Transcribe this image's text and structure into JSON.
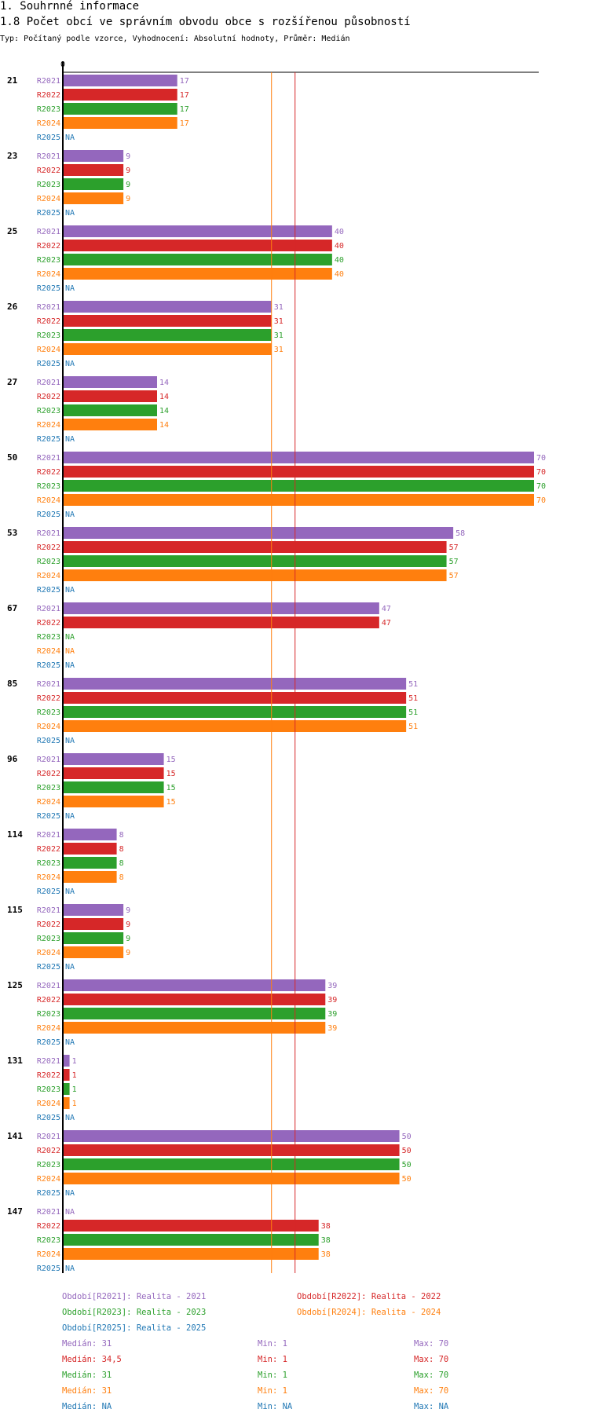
{
  "header": {
    "title": "1. Souhrnné informace",
    "subtitle": "1.8 Počet obcí ve správním obvodu obce s rozšířenou působností",
    "typ": "Typ: Počítaný podle vzorce, Vyhodnocení: Absolutní hodnoty, Průměr: Medián"
  },
  "colors": {
    "R2021": "#9467bd",
    "R2022": "#d62728",
    "R2023": "#2ca02c",
    "R2024": "#ff7f0e",
    "R2025": "#1f77b4"
  },
  "chart_data": {
    "type": "bar",
    "orientation": "horizontal",
    "xlim": [
      0,
      70
    ],
    "zero_label": "0",
    "na_label": "NA",
    "series_names": [
      "R2021",
      "R2022",
      "R2023",
      "R2024",
      "R2025"
    ],
    "categories": [
      "21",
      "23",
      "25",
      "26",
      "27",
      "50",
      "53",
      "67",
      "85",
      "96",
      "114",
      "115",
      "125",
      "131",
      "141",
      "147"
    ],
    "series": [
      {
        "name": "R2021",
        "values": [
          17,
          9,
          40,
          31,
          14,
          70,
          58,
          47,
          51,
          15,
          8,
          9,
          39,
          1,
          50,
          null
        ]
      },
      {
        "name": "R2022",
        "values": [
          17,
          9,
          40,
          31,
          14,
          70,
          57,
          47,
          51,
          15,
          8,
          9,
          39,
          1,
          50,
          38
        ]
      },
      {
        "name": "R2023",
        "values": [
          17,
          9,
          40,
          31,
          14,
          70,
          57,
          null,
          51,
          15,
          8,
          9,
          39,
          1,
          50,
          38
        ]
      },
      {
        "name": "R2024",
        "values": [
          17,
          9,
          40,
          31,
          14,
          70,
          57,
          null,
          51,
          15,
          8,
          9,
          39,
          1,
          50,
          38
        ]
      },
      {
        "name": "R2025",
        "values": [
          null,
          null,
          null,
          null,
          null,
          null,
          null,
          null,
          null,
          null,
          null,
          null,
          null,
          null,
          null,
          null
        ]
      }
    ],
    "reference_lines": [
      {
        "series": "R2021",
        "value": 31
      },
      {
        "series": "R2022",
        "value": 34.5
      }
    ]
  },
  "legend": {
    "periods": [
      {
        "series": "R2021",
        "label": "Období[R2021]: Realita - 2021"
      },
      {
        "series": "R2022",
        "label": "Období[R2022]: Realita - 2022"
      },
      {
        "series": "R2023",
        "label": "Období[R2023]: Realita - 2023"
      },
      {
        "series": "R2024",
        "label": "Období[R2024]: Realita - 2024"
      },
      {
        "series": "R2025",
        "label": "Období[R2025]: Realita - 2025"
      }
    ],
    "stats": [
      {
        "series": "R2021",
        "median": "Medián: 31",
        "min": "Min: 1",
        "max": "Max: 70"
      },
      {
        "series": "R2022",
        "median": "Medián: 34,5",
        "min": "Min: 1",
        "max": "Max: 70"
      },
      {
        "series": "R2023",
        "median": "Medián: 31",
        "min": "Min: 1",
        "max": "Max: 70"
      },
      {
        "series": "R2024",
        "median": "Medián: 31",
        "min": "Min: 1",
        "max": "Max: 70"
      },
      {
        "series": "R2025",
        "median": "Medián: NA",
        "min": "Min: NA",
        "max": "Max: NA"
      }
    ]
  }
}
